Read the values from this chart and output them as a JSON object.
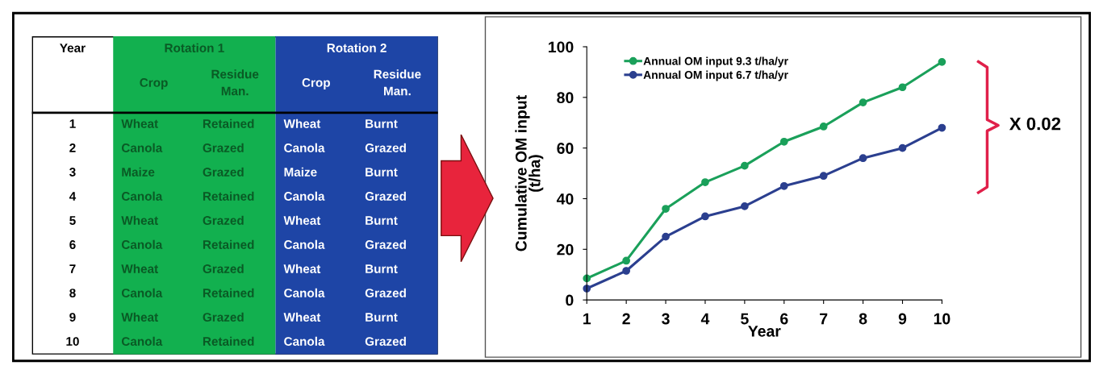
{
  "chart_data": [
    {
      "type": "heatmap",
      "ylabel": "Year",
      "categories": [
        "Crop",
        "Residue Man.",
        "Crop",
        "Residue Man."
      ],
      "y_categories": [
        "1",
        "2",
        "3",
        "4",
        "5",
        "6",
        "7",
        "8",
        "9",
        "10"
      ],
      "annotations": [
        "Rotation 1",
        "Rotation 2"
      ],
      "colors": [
        "#12b04f",
        "#1e45a6"
      ],
      "cells": [
        [
          null,
          null,
          null,
          null
        ],
        [
          null,
          null,
          null,
          null
        ],
        [
          null,
          null,
          null,
          null
        ],
        [
          null,
          null,
          null,
          null
        ],
        [
          null,
          null,
          null,
          null
        ],
        [
          null,
          null,
          null,
          null
        ],
        [
          null,
          null,
          null,
          null
        ],
        [
          null,
          null,
          null,
          null
        ],
        [
          null,
          null,
          null,
          null
        ],
        [
          null,
          null,
          null,
          null
        ]
      ],
      "cell_labels": [
        [
          "Wheat",
          "Retained",
          "Wheat",
          "Burnt"
        ],
        [
          "Canola",
          "Grazed",
          "Canola",
          "Grazed"
        ],
        [
          "Maize",
          "Grazed",
          "Maize",
          "Burnt"
        ],
        [
          "Canola",
          "Retained",
          "Canola",
          "Grazed"
        ],
        [
          "Wheat",
          "Grazed",
          "Wheat",
          "Burnt"
        ],
        [
          "Canola",
          "Retained",
          "Canola",
          "Grazed"
        ],
        [
          "Wheat",
          "Grazed",
          "Wheat",
          "Burnt"
        ],
        [
          "Canola",
          "Retained",
          "Canola",
          "Grazed"
        ],
        [
          "Wheat",
          "Grazed",
          "Wheat",
          "Burnt"
        ],
        [
          "Canola",
          "Retained",
          "Canola",
          "Grazed"
        ]
      ]
    },
    {
      "type": "line",
      "xlabel": "Year",
      "ylabel": "Cumulative OM input\n(t/ha)",
      "x": [
        1,
        2,
        3,
        4,
        5,
        6,
        7,
        8,
        9,
        10
      ],
      "series": [
        {
          "name": "Annual OM input 9.3 t/ha/yr",
          "color": "#1aa05a",
          "values": [
            8.5,
            15.5,
            36,
            46.5,
            53,
            62.5,
            68.5,
            78,
            84,
            94
          ]
        },
        {
          "name": "Annual OM input 6.7 t/ha/yr",
          "color": "#2b3f8f",
          "values": [
            4.5,
            11.5,
            25,
            33,
            37,
            45,
            49,
            56,
            60,
            68
          ]
        }
      ],
      "xlim": [
        1,
        10
      ],
      "xticks": [
        1,
        2,
        3,
        4,
        5,
        6,
        7,
        8,
        9,
        10
      ],
      "ylim": [
        0,
        100
      ],
      "yticks": [
        0,
        20,
        40,
        60,
        80,
        100
      ],
      "marker": "circle",
      "line_style": "solid",
      "legend": "top left",
      "grid": false,
      "annotations": [
        "X 0.02"
      ]
    }
  ]
}
